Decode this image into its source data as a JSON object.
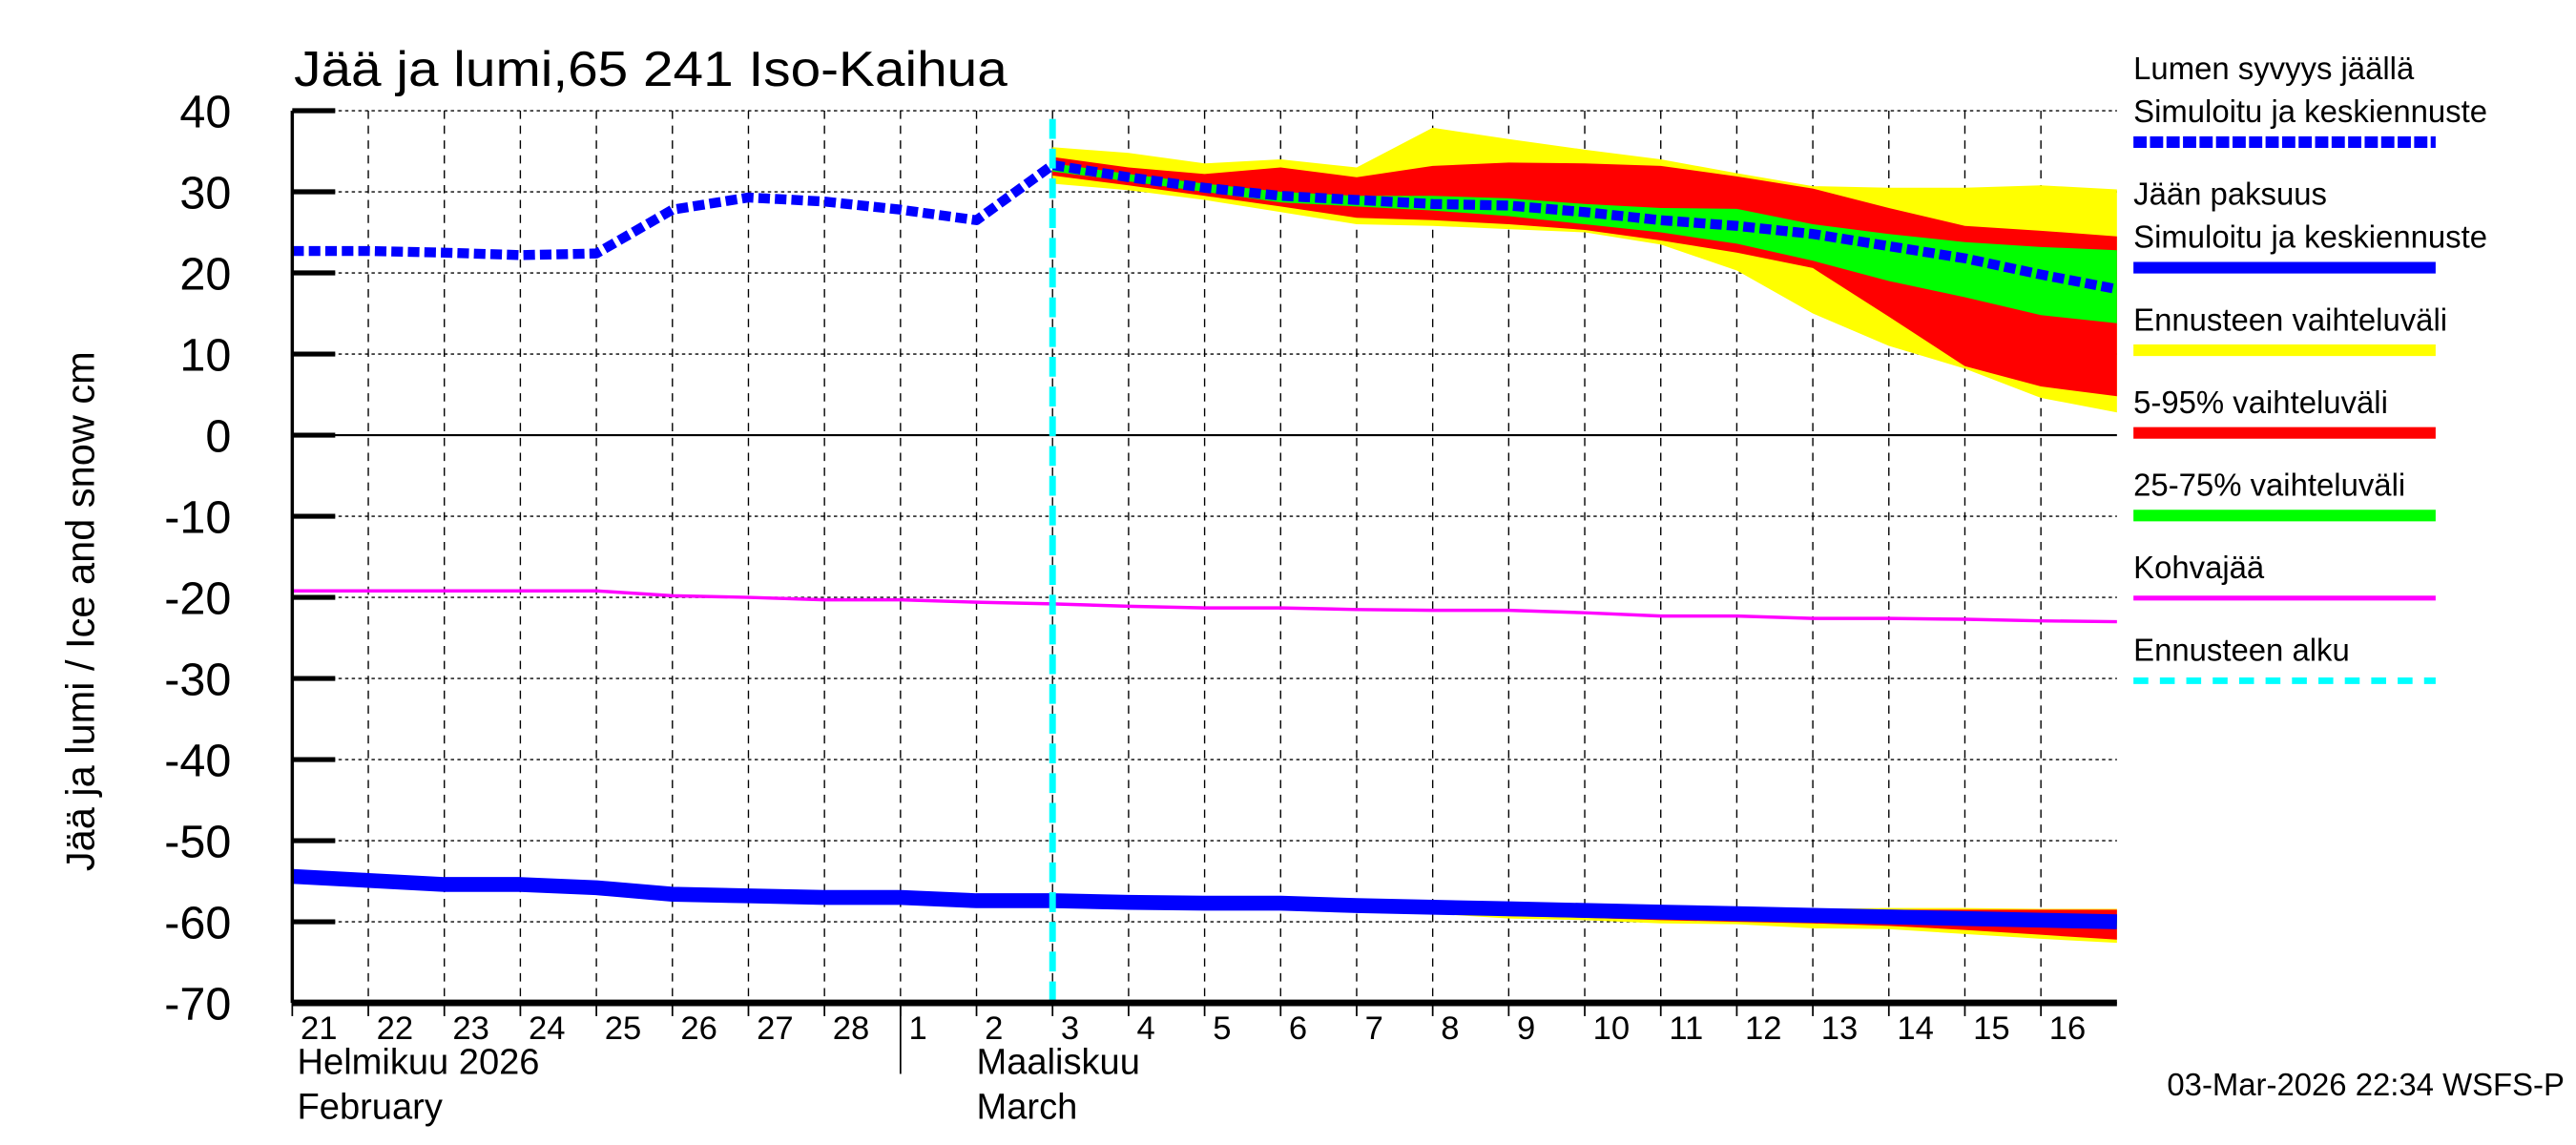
{
  "chart_data": {
    "type": "area",
    "title": "Jää ja lumi,65 241 Iso-Kaihua",
    "ylabel": "Jää ja lumi / Ice and snow    cm",
    "ylim": [
      -70,
      40
    ],
    "yticks": [
      40,
      30,
      20,
      10,
      0,
      -10,
      -20,
      -30,
      -40,
      -50,
      -60,
      -70
    ],
    "grid": true,
    "legend_position": "right",
    "x_dates": [
      "2026-02-21",
      "2026-02-22",
      "2026-02-23",
      "2026-02-24",
      "2026-02-25",
      "2026-02-26",
      "2026-02-27",
      "2026-02-28",
      "2026-03-01",
      "2026-03-02",
      "2026-03-03",
      "2026-03-04",
      "2026-03-05",
      "2026-03-06",
      "2026-03-07",
      "2026-03-08",
      "2026-03-09",
      "2026-03-10",
      "2026-03-11",
      "2026-03-12",
      "2026-03-13",
      "2026-03-14",
      "2026-03-15",
      "2026-03-16",
      "2026-03-17"
    ],
    "xtick_labels": [
      "21",
      "22",
      "23",
      "24",
      "25",
      "26",
      "27",
      "28",
      "1",
      "2",
      "3",
      "4",
      "5",
      "6",
      "7",
      "8",
      "9",
      "10",
      "11",
      "12",
      "13",
      "14",
      "15",
      "16"
    ],
    "month_labels": [
      {
        "fi": "Helmikuu  2026",
        "en": "February"
      },
      {
        "fi": "Maaliskuu",
        "en": "March"
      }
    ],
    "forecast_start": "2026-03-03",
    "forecast_dates": [
      "2026-03-03",
      "2026-03-04",
      "2026-03-05",
      "2026-03-06",
      "2026-03-07",
      "2026-03-08",
      "2026-03-09",
      "2026-03-10",
      "2026-03-11",
      "2026-03-12",
      "2026-03-13",
      "2026-03-14",
      "2026-03-15",
      "2026-03-16",
      "2026-03-17"
    ],
    "series": [
      {
        "name": "Lumen syvyys jäällä Simuloitu ja keskiennuste",
        "style": "dashed",
        "color": "#0000ff",
        "values": [
          22.7,
          22.7,
          22.5,
          22.2,
          22.4,
          27.8,
          29.3,
          28.8,
          27.8,
          26.5,
          33.3,
          31.8,
          30.5,
          29.5,
          29.0,
          28.5,
          28.3,
          27.5,
          26.5,
          25.8,
          24.8,
          23.3,
          21.8,
          19.8,
          18.0
        ]
      },
      {
        "name": "Jään paksuus Simuloitu ja keskiennuste",
        "style": "solid",
        "color": "#0000ff",
        "values": [
          -54.4,
          -54.9,
          -55.4,
          -55.4,
          -55.8,
          -56.6,
          -56.8,
          -57.0,
          -57.0,
          -57.4,
          -57.4,
          -57.6,
          -57.7,
          -57.7,
          -58.0,
          -58.2,
          -58.4,
          -58.6,
          -58.8,
          -59.0,
          -59.2,
          -59.4,
          -59.6,
          -59.8,
          -60.0
        ]
      },
      {
        "name": "Kohvajää",
        "style": "solid",
        "color": "#ff00ff",
        "values": [
          -19.2,
          -19.2,
          -19.2,
          -19.2,
          -19.2,
          -19.8,
          -20.0,
          -20.3,
          -20.3,
          -20.6,
          -20.8,
          -21.1,
          -21.3,
          -21.3,
          -21.5,
          -21.6,
          -21.6,
          -21.9,
          -22.3,
          -22.3,
          -22.6,
          -22.6,
          -22.7,
          -22.9,
          -23.0
        ]
      }
    ],
    "bands": {
      "snow": {
        "ennusteen_vaihteluvali": {
          "upper": [
            35.5,
            34.8,
            33.5,
            34.0,
            33.0,
            37.9,
            36.5,
            35.2,
            34.0,
            32.3,
            30.7,
            30.5,
            30.5,
            30.8,
            30.3
          ],
          "lower": [
            31.0,
            30.2,
            29.0,
            27.5,
            26.0,
            25.8,
            25.4,
            25.0,
            23.5,
            20.3,
            15.0,
            11.0,
            8.2,
            4.6,
            2.8
          ]
        },
        "p5_95": {
          "upper": [
            34.3,
            33.0,
            32.2,
            33.0,
            31.8,
            33.2,
            33.6,
            33.5,
            33.2,
            31.9,
            30.4,
            28.0,
            25.8,
            25.2,
            24.5
          ],
          "lower": [
            32.0,
            30.8,
            29.5,
            28.2,
            26.8,
            26.5,
            26.0,
            25.3,
            24.0,
            22.5,
            20.6,
            14.6,
            8.5,
            6.0,
            4.8
          ]
        },
        "p25_75": {
          "upper": [
            33.5,
            32.2,
            31.0,
            30.0,
            29.5,
            29.5,
            29.2,
            28.5,
            28.0,
            27.9,
            26.0,
            24.8,
            23.8,
            23.2,
            22.8
          ],
          "lower": [
            32.5,
            31.3,
            30.0,
            28.7,
            28.2,
            27.7,
            27.0,
            26.0,
            25.0,
            23.6,
            21.5,
            19.0,
            17.0,
            14.8,
            13.8
          ]
        }
      },
      "ice": {
        "ennusteen_vaihteluvali": {
          "upper": [
            -57.4,
            -57.6,
            -57.7,
            -57.7,
            -58.0,
            -58.2,
            -58.4,
            -58.4,
            -58.3,
            -58.3,
            -58.4,
            -58.3,
            -58.3,
            -58.4,
            -58.4
          ],
          "lower": [
            -57.4,
            -57.6,
            -57.7,
            -57.7,
            -58.0,
            -59.0,
            -59.6,
            -59.8,
            -60.2,
            -60.3,
            -60.8,
            -60.9,
            -61.5,
            -62.1,
            -62.6
          ]
        },
        "p5_95": {
          "upper": [
            -57.4,
            -57.6,
            -57.7,
            -57.7,
            -58.0,
            -58.2,
            -58.4,
            -58.6,
            -58.6,
            -58.6,
            -58.6,
            -58.5,
            -58.5,
            -58.5,
            -58.5
          ],
          "lower": [
            -57.4,
            -57.6,
            -57.7,
            -57.7,
            -58.0,
            -58.8,
            -59.3,
            -59.5,
            -59.8,
            -60.0,
            -60.2,
            -60.5,
            -61.0,
            -61.6,
            -62.2
          ]
        },
        "p25_75": {
          "upper": [
            -57.4,
            -57.6,
            -57.7,
            -57.7,
            -58.0,
            -58.2,
            -58.4,
            -58.6,
            -58.7,
            -58.8,
            -58.9,
            -59.0,
            -59.1,
            -59.2,
            -59.4
          ],
          "lower": [
            -57.4,
            -57.6,
            -57.7,
            -57.7,
            -58.0,
            -58.3,
            -58.6,
            -58.8,
            -59.0,
            -59.2,
            -59.4,
            -59.7,
            -60.0,
            -60.2,
            -60.5
          ]
        }
      }
    },
    "legend": [
      {
        "label1": "Lumen syvyys jäällä",
        "label2": "Simuloitu ja keskiennuste",
        "color": "#0000ff",
        "style": "dashed"
      },
      {
        "label1": "Jään paksuus",
        "label2": "Simuloitu ja keskiennuste",
        "color": "#0000ff",
        "style": "solid"
      },
      {
        "label1": "Ennusteen vaihteluväli",
        "color": "#ffff00",
        "style": "solid"
      },
      {
        "label1": "5-95% vaihteluväli",
        "color": "#ff0000",
        "style": "solid"
      },
      {
        "label1": "25-75% vaihteluväli",
        "color": "#00ff00",
        "style": "solid"
      },
      {
        "label1": "Kohvajää",
        "color": "#ff00ff",
        "style": "thin"
      },
      {
        "label1": "Ennusteen alku",
        "color": "#00ffff",
        "style": "dashed"
      }
    ],
    "footer": "03-Mar-2026 22:34 WSFS-P"
  }
}
